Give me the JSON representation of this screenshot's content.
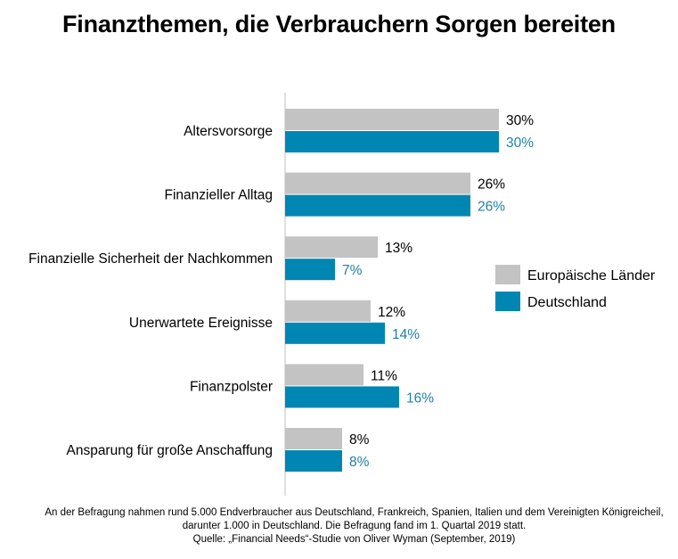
{
  "chart_data": {
    "type": "bar",
    "orientation": "horizontal",
    "title": "Finanzthemen, die Verbrauchern Sorgen bereiten",
    "categories": [
      "Altersvorsorge",
      "Finanzieller Alltag",
      "Finanzielle Sicherheit der Nachkommen",
      "Unerwartete Ereignisse",
      "Finanzpolster",
      "Ansparung für große Anschaffung"
    ],
    "series": [
      {
        "name": "Europäische Länder",
        "color": "#c3c3c3",
        "label_color": "#000000",
        "values": [
          30,
          26,
          13,
          12,
          11,
          8
        ],
        "labels": [
          "30%",
          "26%",
          "13%",
          "12%",
          "11%",
          "8%"
        ]
      },
      {
        "name": "Deutschland",
        "color": "#0086b3",
        "label_color": "#1f7fa7",
        "values": [
          30,
          26,
          7,
          14,
          16,
          8
        ],
        "labels": [
          "30%",
          "26%",
          "7%",
          "14%",
          "16%",
          "8%"
        ]
      }
    ],
    "xlim": [
      0,
      40
    ],
    "grid": false,
    "legend_position": "right"
  },
  "footnote": {
    "line1": "An der Befragung nahmen rund 5.000 Endverbraucher aus Deutschland, Frankreich, Spanien, Italien und dem Vereinigten Königreicheil,",
    "line2": "darunter 1.000 in Deutschland. Die Befragung fand im 1. Quartal 2019 statt.",
    "line3": "Quelle: „Financial Needs“-Studie von Oliver Wyman (September, 2019)"
  }
}
